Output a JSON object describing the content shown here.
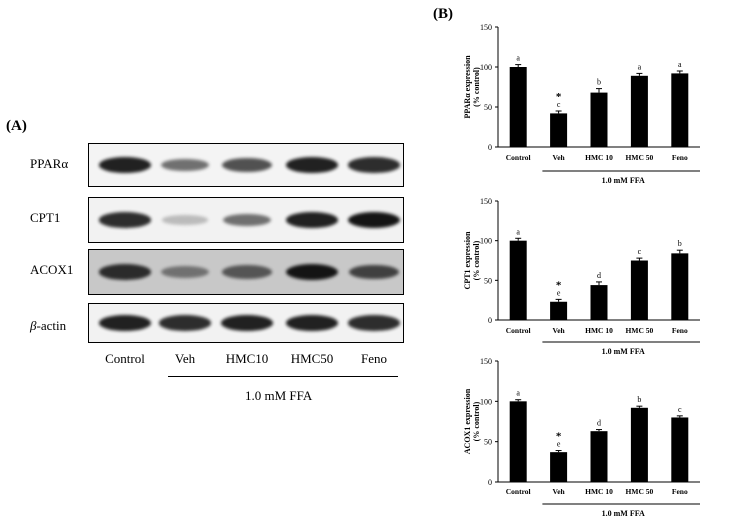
{
  "panel_a": {
    "label": "(A)",
    "rows": [
      {
        "name": "PPARα",
        "display": "PPARα"
      },
      {
        "name": "CPT1",
        "display": "CPT1"
      },
      {
        "name": "ACOX1",
        "display": "ACOX1"
      },
      {
        "name": "beta-actin",
        "display": "-actin",
        "prefix": "β"
      }
    ],
    "lanes": [
      "Control",
      "Veh",
      "HMC10",
      "HMC50",
      "Feno"
    ],
    "band_intensity": {
      "PPARα": [
        0.95,
        0.6,
        0.75,
        0.95,
        0.9
      ],
      "CPT1": [
        0.9,
        0.15,
        0.6,
        0.95,
        1.0
      ],
      "ACOX1": [
        0.9,
        0.55,
        0.7,
        1.0,
        0.8
      ],
      "beta-actin": [
        0.95,
        0.9,
        0.95,
        0.95,
        0.9
      ]
    },
    "treatment": "1.0 mM FFA"
  },
  "panel_b": {
    "label": "(B)",
    "treatment": "1.0 mM FFA"
  },
  "chart_data": [
    {
      "type": "bar",
      "ylabel_line1": "PPARα expression",
      "ylabel_line2": "(% control)",
      "categories": [
        "Control",
        "Veh",
        "HMC 10",
        "HMC 50",
        "Feno"
      ],
      "values": [
        100,
        42,
        68,
        89,
        92
      ],
      "errors": [
        3,
        3,
        5,
        3,
        3
      ],
      "letters": [
        "a",
        "c",
        "b",
        "a",
        "a"
      ],
      "star": [
        false,
        true,
        false,
        false,
        false
      ],
      "ylim": [
        0,
        150
      ],
      "yticks": [
        0,
        50,
        100,
        150
      ]
    },
    {
      "type": "bar",
      "ylabel_line1": "CPT1 expression",
      "ylabel_line2": "(% control)",
      "categories": [
        "Control",
        "Veh",
        "HMC 10",
        "HMC 50",
        "Feno"
      ],
      "values": [
        100,
        23,
        44,
        75,
        84
      ],
      "errors": [
        3,
        3,
        4,
        3,
        4
      ],
      "letters": [
        "a",
        "e",
        "d",
        "c",
        "b"
      ],
      "star": [
        false,
        true,
        false,
        false,
        false
      ],
      "ylim": [
        0,
        150
      ],
      "yticks": [
        0,
        50,
        100,
        150
      ]
    },
    {
      "type": "bar",
      "ylabel_line1": "ACOX1 expression",
      "ylabel_line2": "(% control)",
      "categories": [
        "Control",
        "Veh",
        "HMC 10",
        "HMC 50",
        "Feno"
      ],
      "values": [
        100,
        37,
        63,
        92,
        80
      ],
      "errors": [
        2,
        2,
        2,
        2,
        2
      ],
      "letters": [
        "a",
        "e",
        "d",
        "b",
        "c"
      ],
      "star": [
        false,
        true,
        false,
        false,
        false
      ],
      "ylim": [
        0,
        150
      ],
      "yticks": [
        0,
        50,
        100,
        150
      ]
    }
  ]
}
